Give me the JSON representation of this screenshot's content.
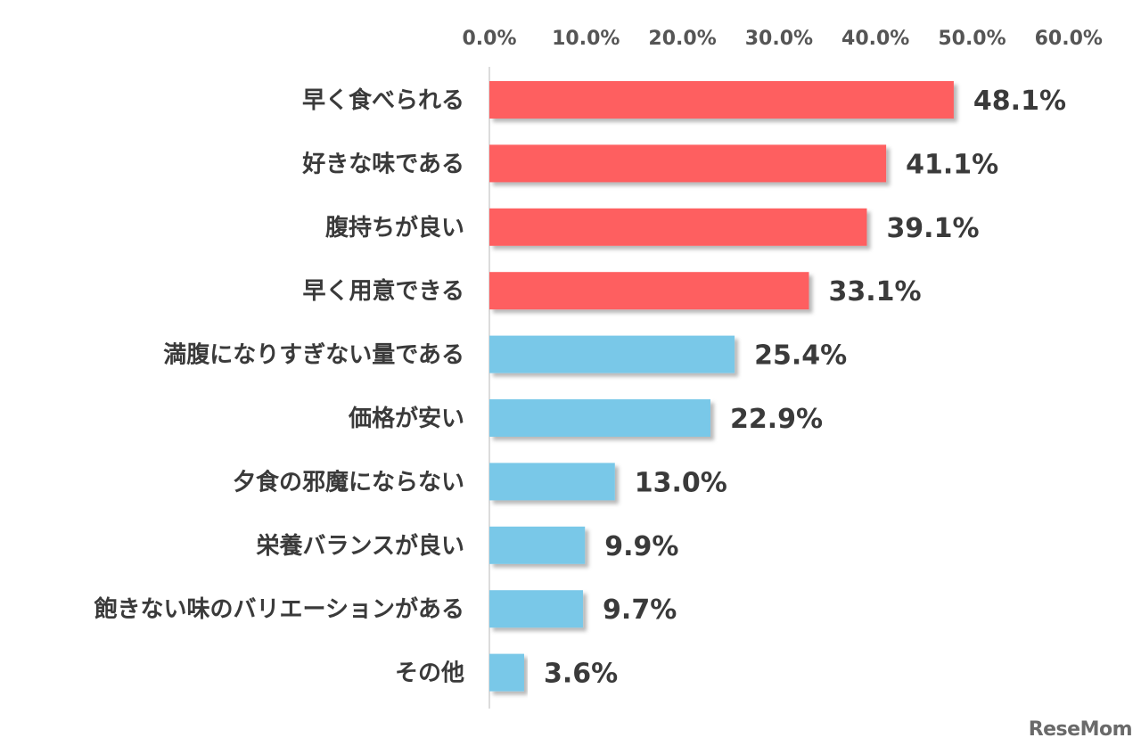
{
  "chart_data": {
    "type": "bar",
    "orientation": "horizontal",
    "categories": [
      "早く食べられる",
      "好きな味である",
      "腹持ちが良い",
      "早く用意できる",
      "満腹になりすぎない量である",
      "価格が安い",
      "夕食の邪魔にならない",
      "栄養バランスが良い",
      "飽きない味のバリエーションがある",
      "その他"
    ],
    "values": [
      48.1,
      41.1,
      39.1,
      33.1,
      25.4,
      22.9,
      13.0,
      9.9,
      9.7,
      3.6
    ],
    "value_labels": [
      "48.1%",
      "41.1%",
      "39.1%",
      "33.1%",
      "25.4%",
      "22.9%",
      "13.0%",
      "9.9%",
      "9.7%",
      "3.6%"
    ],
    "highlight_count": 4,
    "colors": {
      "highlight": "#fe5e60",
      "normal": "#79c8e8"
    },
    "xlim": [
      0,
      60
    ],
    "x_ticks": [
      0,
      10,
      20,
      30,
      40,
      50,
      60
    ],
    "x_tick_labels": [
      "0.0%",
      "10.0%",
      "20.0%",
      "30.0%",
      "40.0%",
      "50.0%",
      "60.0%"
    ],
    "axis_position": "top",
    "grid": false,
    "legend": "none"
  },
  "watermark": {
    "text": "ReseMom"
  }
}
